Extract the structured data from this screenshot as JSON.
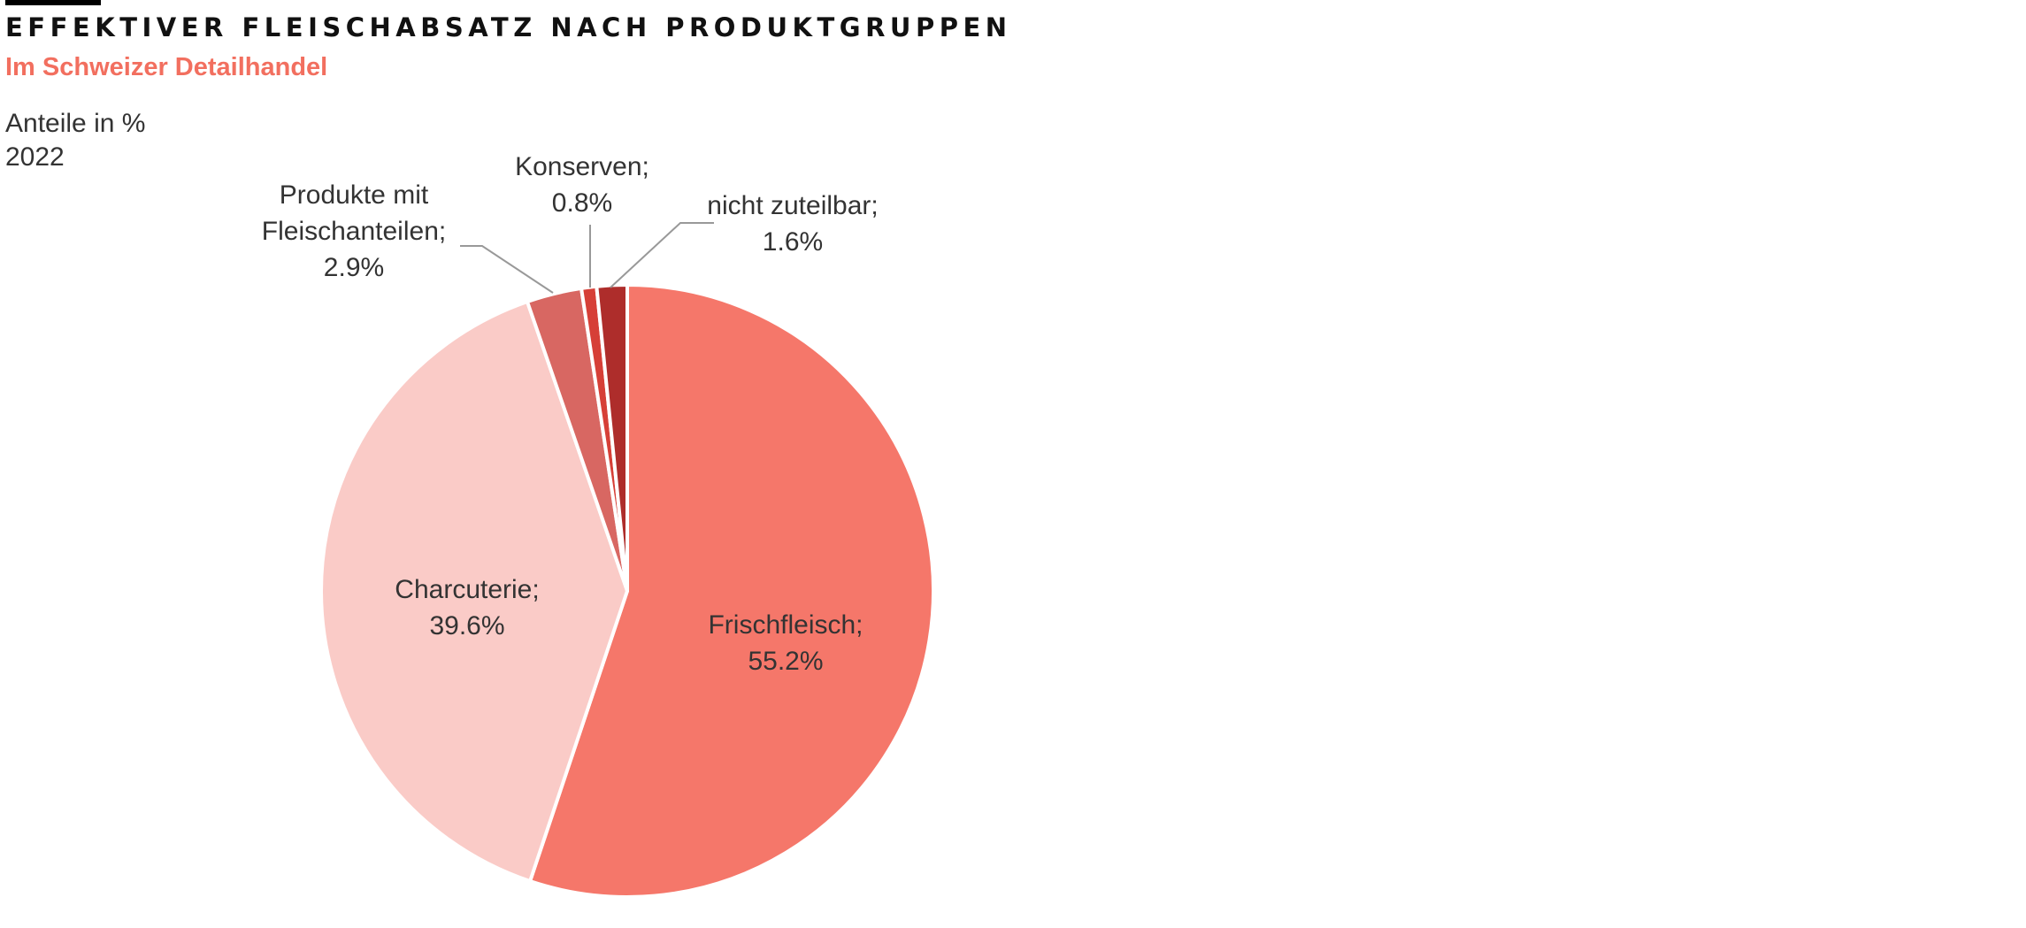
{
  "header": {
    "title": "EFFEKTIVER FLEISCHABSATZ NACH PRODUKTGRUPPEN",
    "subtitle": "Im Schweizer Detailhandel",
    "unit": "Anteile in %",
    "year": "2022"
  },
  "colors": {
    "subtitle": "#f26f5f",
    "text": "#333333",
    "leader": "#999999",
    "separator": "#ffffff"
  },
  "chart_data": {
    "type": "pie",
    "title": "EFFEKTIVER FLEISCHABSATZ NACH PRODUKTGRUPPEN",
    "subtitle": "Im Schweizer Detailhandel",
    "unit": "Anteile in %",
    "year": "2022",
    "start": "12 o'clock",
    "direction": "clockwise",
    "slices": [
      {
        "key": "frischfleisch",
        "lines": [
          "Frischfleisch;",
          "55.2%"
        ],
        "value": 55.2,
        "color": "#f5776a",
        "label_position": "inside"
      },
      {
        "key": "charcuterie",
        "lines": [
          "Charcuterie;",
          "39.6%"
        ],
        "value": 39.6,
        "color": "#facbc7",
        "label_position": "inside"
      },
      {
        "key": "produkte-mit-fleischanteilen",
        "lines": [
          "Produkte mit",
          "Fleischanteilen;",
          "2.9%"
        ],
        "value": 2.9,
        "color": "#d86762",
        "label_position": "outside-left"
      },
      {
        "key": "konserven",
        "lines": [
          "Konserven;",
          "0.8%"
        ],
        "value": 0.8,
        "color": "#d63f37",
        "label_position": "outside-top"
      },
      {
        "key": "nicht-zuteilbar",
        "lines": [
          "nicht zuteilbar;",
          "1.6%"
        ],
        "value": 1.6,
        "color": "#ae2d2b",
        "label_position": "outside-right"
      }
    ]
  }
}
